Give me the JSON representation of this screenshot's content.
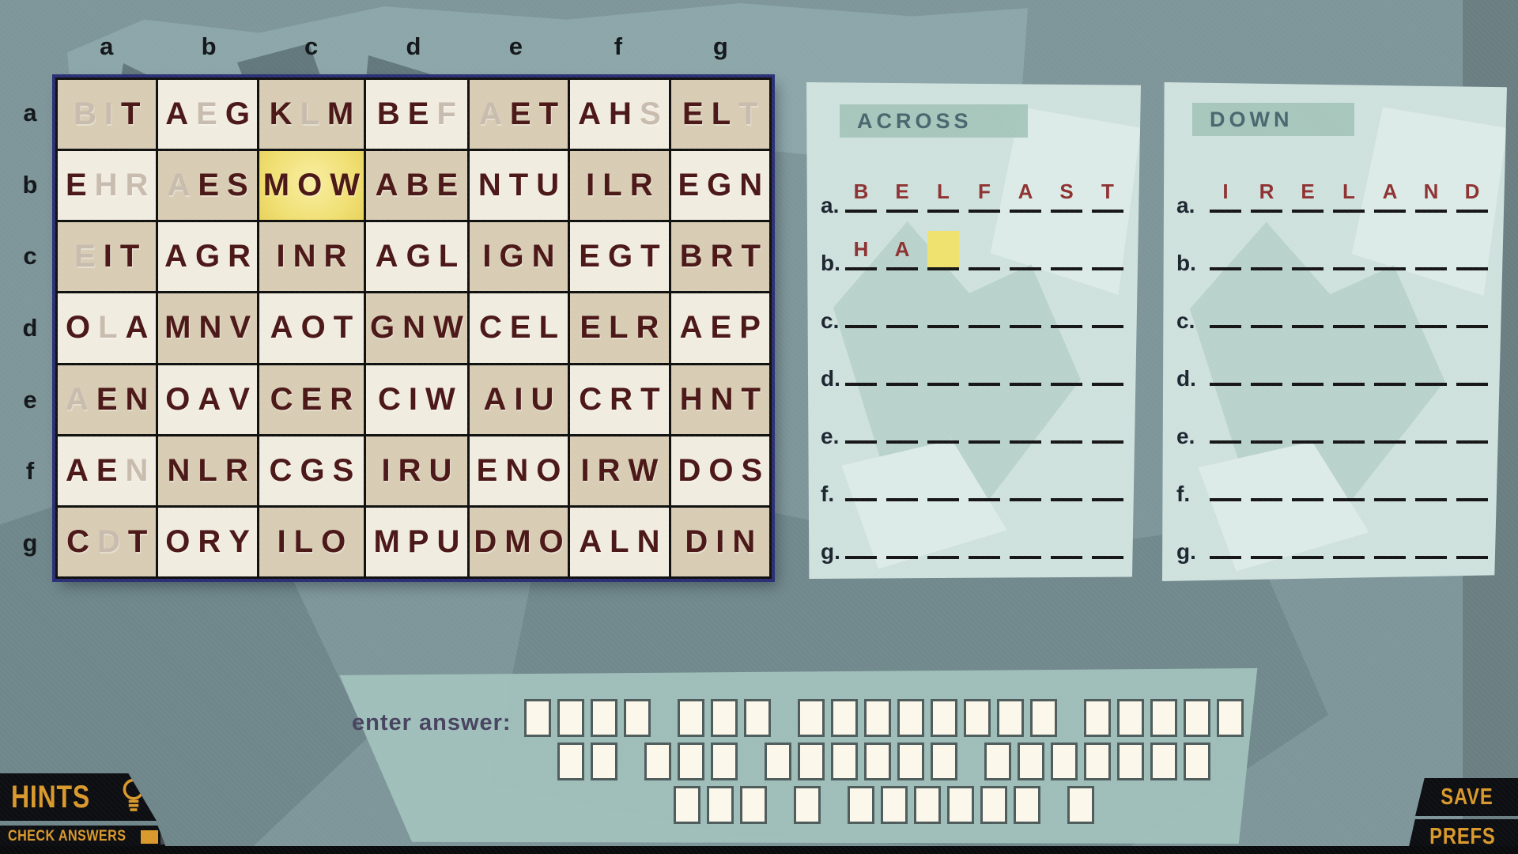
{
  "palette": {
    "accent_orange": "#d9992c",
    "letter_dark": "#4b1717",
    "letter_faded": "#c8bcae",
    "answer_red": "#8e3232",
    "highlight_yellow": "#efe26e",
    "cell_tan": "#d8cdb4",
    "cell_cream": "#f1ece0",
    "panel_teal": "#cfe1dd",
    "band_teal": "#a4c4ba",
    "heading_teal": "#3f5d66",
    "bg_base": "#7e969a",
    "box_fill": "#fbf7ea",
    "navy_border": "#2b3076",
    "label_ink": "#474360"
  },
  "grid": {
    "column_labels": [
      "a",
      "b",
      "c",
      "d",
      "e",
      "f",
      "g"
    ],
    "row_labels": [
      "a",
      "b",
      "c",
      "d",
      "e",
      "f",
      "g"
    ],
    "cells": [
      [
        {
          "letters": "BIT",
          "faded": [
            0,
            1
          ]
        },
        {
          "letters": "AEG",
          "faded": [
            1
          ]
        },
        {
          "letters": "KLM",
          "faded": [
            1
          ]
        },
        {
          "letters": "BEF",
          "faded": [
            2
          ]
        },
        {
          "letters": "AET",
          "faded": [
            0
          ]
        },
        {
          "letters": "AHS",
          "faded": [
            2
          ]
        },
        {
          "letters": "ELT",
          "faded": [
            2
          ]
        }
      ],
      [
        {
          "letters": "EHR",
          "faded": [
            1,
            2
          ]
        },
        {
          "letters": "AES",
          "faded": [
            0
          ]
        },
        {
          "letters": "MOW",
          "faded": [],
          "highlight": true
        },
        {
          "letters": "ABE",
          "faded": []
        },
        {
          "letters": "NTU",
          "faded": []
        },
        {
          "letters": "ILR",
          "faded": []
        },
        {
          "letters": "EGN",
          "faded": []
        }
      ],
      [
        {
          "letters": "EIT",
          "faded": [
            0
          ]
        },
        {
          "letters": "AGR",
          "faded": []
        },
        {
          "letters": "INR",
          "faded": []
        },
        {
          "letters": "AGL",
          "faded": []
        },
        {
          "letters": "IGN",
          "faded": []
        },
        {
          "letters": "EGT",
          "faded": []
        },
        {
          "letters": "BRT",
          "faded": []
        }
      ],
      [
        {
          "letters": "OLA",
          "faded": [
            1
          ]
        },
        {
          "letters": "MNV",
          "faded": []
        },
        {
          "letters": "AOT",
          "faded": []
        },
        {
          "letters": "GNW",
          "faded": []
        },
        {
          "letters": "CEL",
          "faded": []
        },
        {
          "letters": "ELR",
          "faded": []
        },
        {
          "letters": "AEP",
          "faded": []
        }
      ],
      [
        {
          "letters": "AEN",
          "faded": [
            0
          ]
        },
        {
          "letters": "OAV",
          "faded": []
        },
        {
          "letters": "CER",
          "faded": []
        },
        {
          "letters": "CIW",
          "faded": []
        },
        {
          "letters": "AIU",
          "faded": []
        },
        {
          "letters": "CRT",
          "faded": []
        },
        {
          "letters": "HNT",
          "faded": []
        }
      ],
      [
        {
          "letters": "AEN",
          "faded": [
            2
          ]
        },
        {
          "letters": "NLR",
          "faded": []
        },
        {
          "letters": "CGS",
          "faded": []
        },
        {
          "letters": "IRU",
          "faded": []
        },
        {
          "letters": "ENO",
          "faded": []
        },
        {
          "letters": "IRW",
          "faded": []
        },
        {
          "letters": "DOS",
          "faded": []
        }
      ],
      [
        {
          "letters": "CDT",
          "faded": [
            1
          ]
        },
        {
          "letters": "ORY",
          "faded": []
        },
        {
          "letters": "ILO",
          "faded": []
        },
        {
          "letters": "MPU",
          "faded": []
        },
        {
          "letters": "DMO",
          "faded": []
        },
        {
          "letters": "ALN",
          "faded": []
        },
        {
          "letters": "DIN",
          "faded": []
        }
      ]
    ]
  },
  "across": {
    "title": "ACROSS",
    "rows": [
      {
        "label": "a.",
        "slots": 7,
        "letters": [
          "B",
          "E",
          "L",
          "F",
          "A",
          "S",
          "T"
        ]
      },
      {
        "label": "b.",
        "slots": 7,
        "letters": [
          "H",
          "A"
        ],
        "highlight_slot": 2
      },
      {
        "label": "c.",
        "slots": 7,
        "letters": []
      },
      {
        "label": "d.",
        "slots": 7,
        "letters": []
      },
      {
        "label": "e.",
        "slots": 7,
        "letters": []
      },
      {
        "label": "f.",
        "slots": 7,
        "letters": []
      },
      {
        "label": "g.",
        "slots": 7,
        "letters": []
      }
    ]
  },
  "down": {
    "title": "DOWN",
    "rows": [
      {
        "label": "a.",
        "slots": 7,
        "letters": [
          "I",
          "R",
          "E",
          "L",
          "A",
          "N",
          "D"
        ]
      },
      {
        "label": "b.",
        "slots": 7,
        "letters": []
      },
      {
        "label": "c.",
        "slots": 7,
        "letters": []
      },
      {
        "label": "d.",
        "slots": 7,
        "letters": []
      },
      {
        "label": "e.",
        "slots": 7,
        "letters": []
      },
      {
        "label": "f.",
        "slots": 7,
        "letters": []
      },
      {
        "label": "g.",
        "slots": 7,
        "letters": []
      }
    ]
  },
  "answer_entry": {
    "label": "enter answer:",
    "rows": [
      [
        4,
        3,
        8,
        5
      ],
      [
        2,
        3,
        6,
        7
      ],
      [
        3,
        1,
        6,
        1
      ]
    ]
  },
  "footer": {
    "hints_label": "HINTS",
    "hints_icon": "lightbulb-icon",
    "check_answers_label": "CHECK ANSWERS",
    "check_answers_state": "OFF",
    "save_label": "SAVE",
    "prefs_label": "PREFS"
  }
}
